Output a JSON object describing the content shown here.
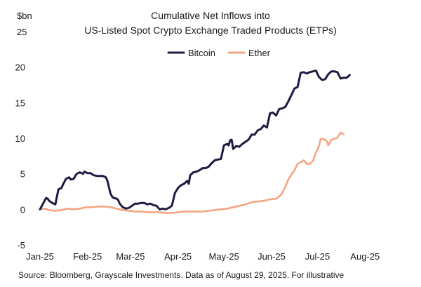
{
  "chart_data": {
    "type": "line",
    "title_lines": [
      "Cumulative Net Inflows into",
      "US-Listed Spot Crypto Exchange Traded Products (ETPs)"
    ],
    "ylabel": "$bn",
    "xlabel": "",
    "ylim": [
      -5,
      25
    ],
    "y_ticks": [
      -5,
      0,
      5,
      10,
      15,
      20,
      25
    ],
    "xlim": [
      0,
      243
    ],
    "x_ticks": [
      {
        "label": "Jan-25",
        "t": 0
      },
      {
        "label": "Feb-25",
        "t": 31
      },
      {
        "label": "Mar-25",
        "t": 59
      },
      {
        "label": "Apr-25",
        "t": 90
      },
      {
        "label": "May-25",
        "t": 120
      },
      {
        "label": "Jun-25",
        "t": 151
      },
      {
        "label": "Jul-25",
        "t": 181
      },
      {
        "label": "Aug-25",
        "t": 212
      }
    ],
    "legend_position": "top",
    "grid": false,
    "series": [
      {
        "name": "Bitcoin",
        "color": "#231942",
        "points": [
          [
            0,
            0
          ],
          [
            2,
            0.8
          ],
          [
            4,
            1.6
          ],
          [
            5,
            1.5
          ],
          [
            6,
            1.2
          ],
          [
            8,
            0.9
          ],
          [
            10,
            0.7
          ],
          [
            12,
            2.8
          ],
          [
            14,
            3.0
          ],
          [
            15,
            3.5
          ],
          [
            17,
            4.3
          ],
          [
            19,
            4.5
          ],
          [
            20,
            4.2
          ],
          [
            22,
            4.3
          ],
          [
            23,
            4.7
          ],
          [
            24,
            5.0
          ],
          [
            26,
            5.2
          ],
          [
            28,
            5.0
          ],
          [
            29,
            5.3
          ],
          [
            31,
            5.1
          ],
          [
            33,
            5.1
          ],
          [
            35,
            4.8
          ],
          [
            37,
            4.7
          ],
          [
            39,
            4.7
          ],
          [
            41,
            4.7
          ],
          [
            43,
            4.5
          ],
          [
            44,
            4.0
          ],
          [
            46,
            2.2
          ],
          [
            47,
            1.8
          ],
          [
            48,
            1.6
          ],
          [
            50,
            1.5
          ],
          [
            51,
            1.3
          ],
          [
            52,
            0.8
          ],
          [
            54,
            0.3
          ],
          [
            56,
            0.1
          ],
          [
            58,
            0.2
          ],
          [
            60,
            0.5
          ],
          [
            62,
            0.8
          ],
          [
            64,
            0.8
          ],
          [
            66,
            0.9
          ],
          [
            68,
            0.9
          ],
          [
            70,
            0.7
          ],
          [
            72,
            0.8
          ],
          [
            74,
            0.6
          ],
          [
            76,
            0.5
          ],
          [
            78,
            0.0
          ],
          [
            80,
            0.1
          ],
          [
            82,
            0.0
          ],
          [
            84,
            0.2
          ],
          [
            86,
            0.5
          ],
          [
            88,
            2.3
          ],
          [
            90,
            3.0
          ],
          [
            92,
            3.4
          ],
          [
            94,
            3.6
          ],
          [
            96,
            4.0
          ],
          [
            97,
            3.6
          ],
          [
            98,
            4.8
          ],
          [
            100,
            5.2
          ],
          [
            102,
            5.3
          ],
          [
            104,
            5.5
          ],
          [
            106,
            5.8
          ],
          [
            108,
            5.8
          ],
          [
            110,
            6.0
          ],
          [
            112,
            6.5
          ],
          [
            114,
            6.9
          ],
          [
            116,
            7.0
          ],
          [
            118,
            7.1
          ],
          [
            120,
            9.0
          ],
          [
            122,
            9.2
          ],
          [
            123,
            9.0
          ],
          [
            124,
            9.7
          ],
          [
            125,
            9.8
          ],
          [
            126,
            8.5
          ],
          [
            128,
            8.9
          ],
          [
            130,
            8.8
          ],
          [
            132,
            9.2
          ],
          [
            134,
            9.5
          ],
          [
            136,
            9.8
          ],
          [
            138,
            10.5
          ],
          [
            140,
            10.5
          ],
          [
            142,
            11.1
          ],
          [
            144,
            11.3
          ],
          [
            146,
            11.8
          ],
          [
            148,
            11.5
          ],
          [
            150,
            13.5
          ],
          [
            152,
            13.6
          ],
          [
            154,
            13.2
          ],
          [
            156,
            14.1
          ],
          [
            158,
            14.2
          ],
          [
            160,
            14.4
          ],
          [
            162,
            15.2
          ],
          [
            164,
            16.1
          ],
          [
            166,
            17.0
          ],
          [
            168,
            17.2
          ],
          [
            170,
            19.2
          ],
          [
            172,
            19.3
          ],
          [
            174,
            19.1
          ],
          [
            176,
            19.3
          ],
          [
            178,
            19.4
          ],
          [
            180,
            19.5
          ],
          [
            182,
            18.6
          ],
          [
            184,
            18.2
          ],
          [
            186,
            18.3
          ],
          [
            188,
            19.0
          ],
          [
            190,
            19.4
          ],
          [
            192,
            19.4
          ],
          [
            194,
            19.3
          ],
          [
            196,
            18.4
          ],
          [
            198,
            18.5
          ],
          [
            200,
            18.5
          ],
          [
            202,
            18.9
          ]
        ]
      },
      {
        "name": "Ether",
        "color": "#f4a582",
        "points": [
          [
            0,
            0
          ],
          [
            3,
            0.1
          ],
          [
            6,
            -0.1
          ],
          [
            10,
            -0.2
          ],
          [
            14,
            -0.1
          ],
          [
            18,
            0.1
          ],
          [
            22,
            0.0
          ],
          [
            26,
            0.1
          ],
          [
            30,
            0.3
          ],
          [
            34,
            0.3
          ],
          [
            38,
            0.4
          ],
          [
            42,
            0.4
          ],
          [
            46,
            0.3
          ],
          [
            50,
            0.1
          ],
          [
            54,
            -0.1
          ],
          [
            58,
            -0.2
          ],
          [
            62,
            -0.3
          ],
          [
            66,
            -0.3
          ],
          [
            70,
            -0.4
          ],
          [
            74,
            -0.4
          ],
          [
            78,
            -0.4
          ],
          [
            82,
            -0.5
          ],
          [
            86,
            -0.5
          ],
          [
            90,
            -0.4
          ],
          [
            94,
            -0.3
          ],
          [
            98,
            -0.3
          ],
          [
            102,
            -0.3
          ],
          [
            106,
            -0.3
          ],
          [
            110,
            -0.2
          ],
          [
            114,
            -0.1
          ],
          [
            118,
            0.0
          ],
          [
            122,
            0.1
          ],
          [
            126,
            0.3
          ],
          [
            130,
            0.5
          ],
          [
            134,
            0.7
          ],
          [
            138,
            1.0
          ],
          [
            142,
            1.1
          ],
          [
            146,
            1.2
          ],
          [
            150,
            1.4
          ],
          [
            154,
            1.5
          ],
          [
            156,
            1.8
          ],
          [
            158,
            2.3
          ],
          [
            160,
            3.2
          ],
          [
            162,
            4.2
          ],
          [
            164,
            4.9
          ],
          [
            166,
            5.5
          ],
          [
            168,
            6.4
          ],
          [
            170,
            6.6
          ],
          [
            172,
            6.9
          ],
          [
            174,
            6.4
          ],
          [
            176,
            6.4
          ],
          [
            178,
            6.8
          ],
          [
            180,
            8.0
          ],
          [
            182,
            8.9
          ],
          [
            183,
            9.9
          ],
          [
            185,
            9.9
          ],
          [
            187,
            9.6
          ],
          [
            188,
            9.0
          ],
          [
            190,
            9.8
          ],
          [
            192,
            9.9
          ],
          [
            194,
            10.1
          ],
          [
            196,
            10.8
          ],
          [
            198,
            10.6
          ]
        ]
      }
    ]
  },
  "footer": {
    "source": "Source: Bloomberg, Grayscale Investments. Data as of August 29, 2025. For illustrative"
  }
}
